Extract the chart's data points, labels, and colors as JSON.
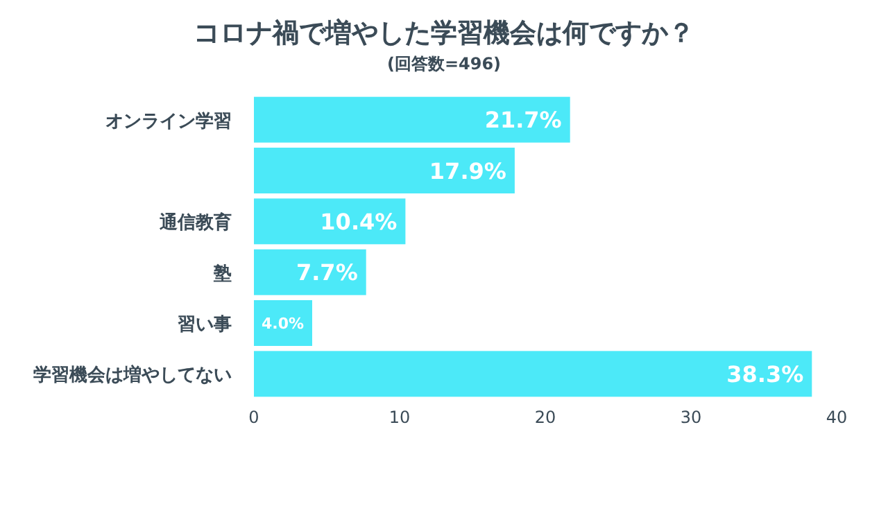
{
  "chart_data": {
    "type": "bar",
    "orientation": "horizontal",
    "title": "コロナ禍で増やした学習機会は何ですか？",
    "subtitle": "(回答数=496)",
    "categories": [
      "オンライン学習",
      null,
      "通信教育",
      "塾",
      "習い事",
      "学習機会は増やしてない"
    ],
    "values": [
      21.7,
      17.9,
      10.4,
      7.7,
      4.0,
      38.3
    ],
    "value_labels": [
      "21.7%",
      "17.9%",
      "10.4%",
      "7.7%",
      "4.0%",
      "38.3%"
    ],
    "color": "#4ce9f8",
    "xlim": [
      0,
      40
    ],
    "xticks": [
      0,
      10,
      20,
      30,
      40
    ]
  }
}
